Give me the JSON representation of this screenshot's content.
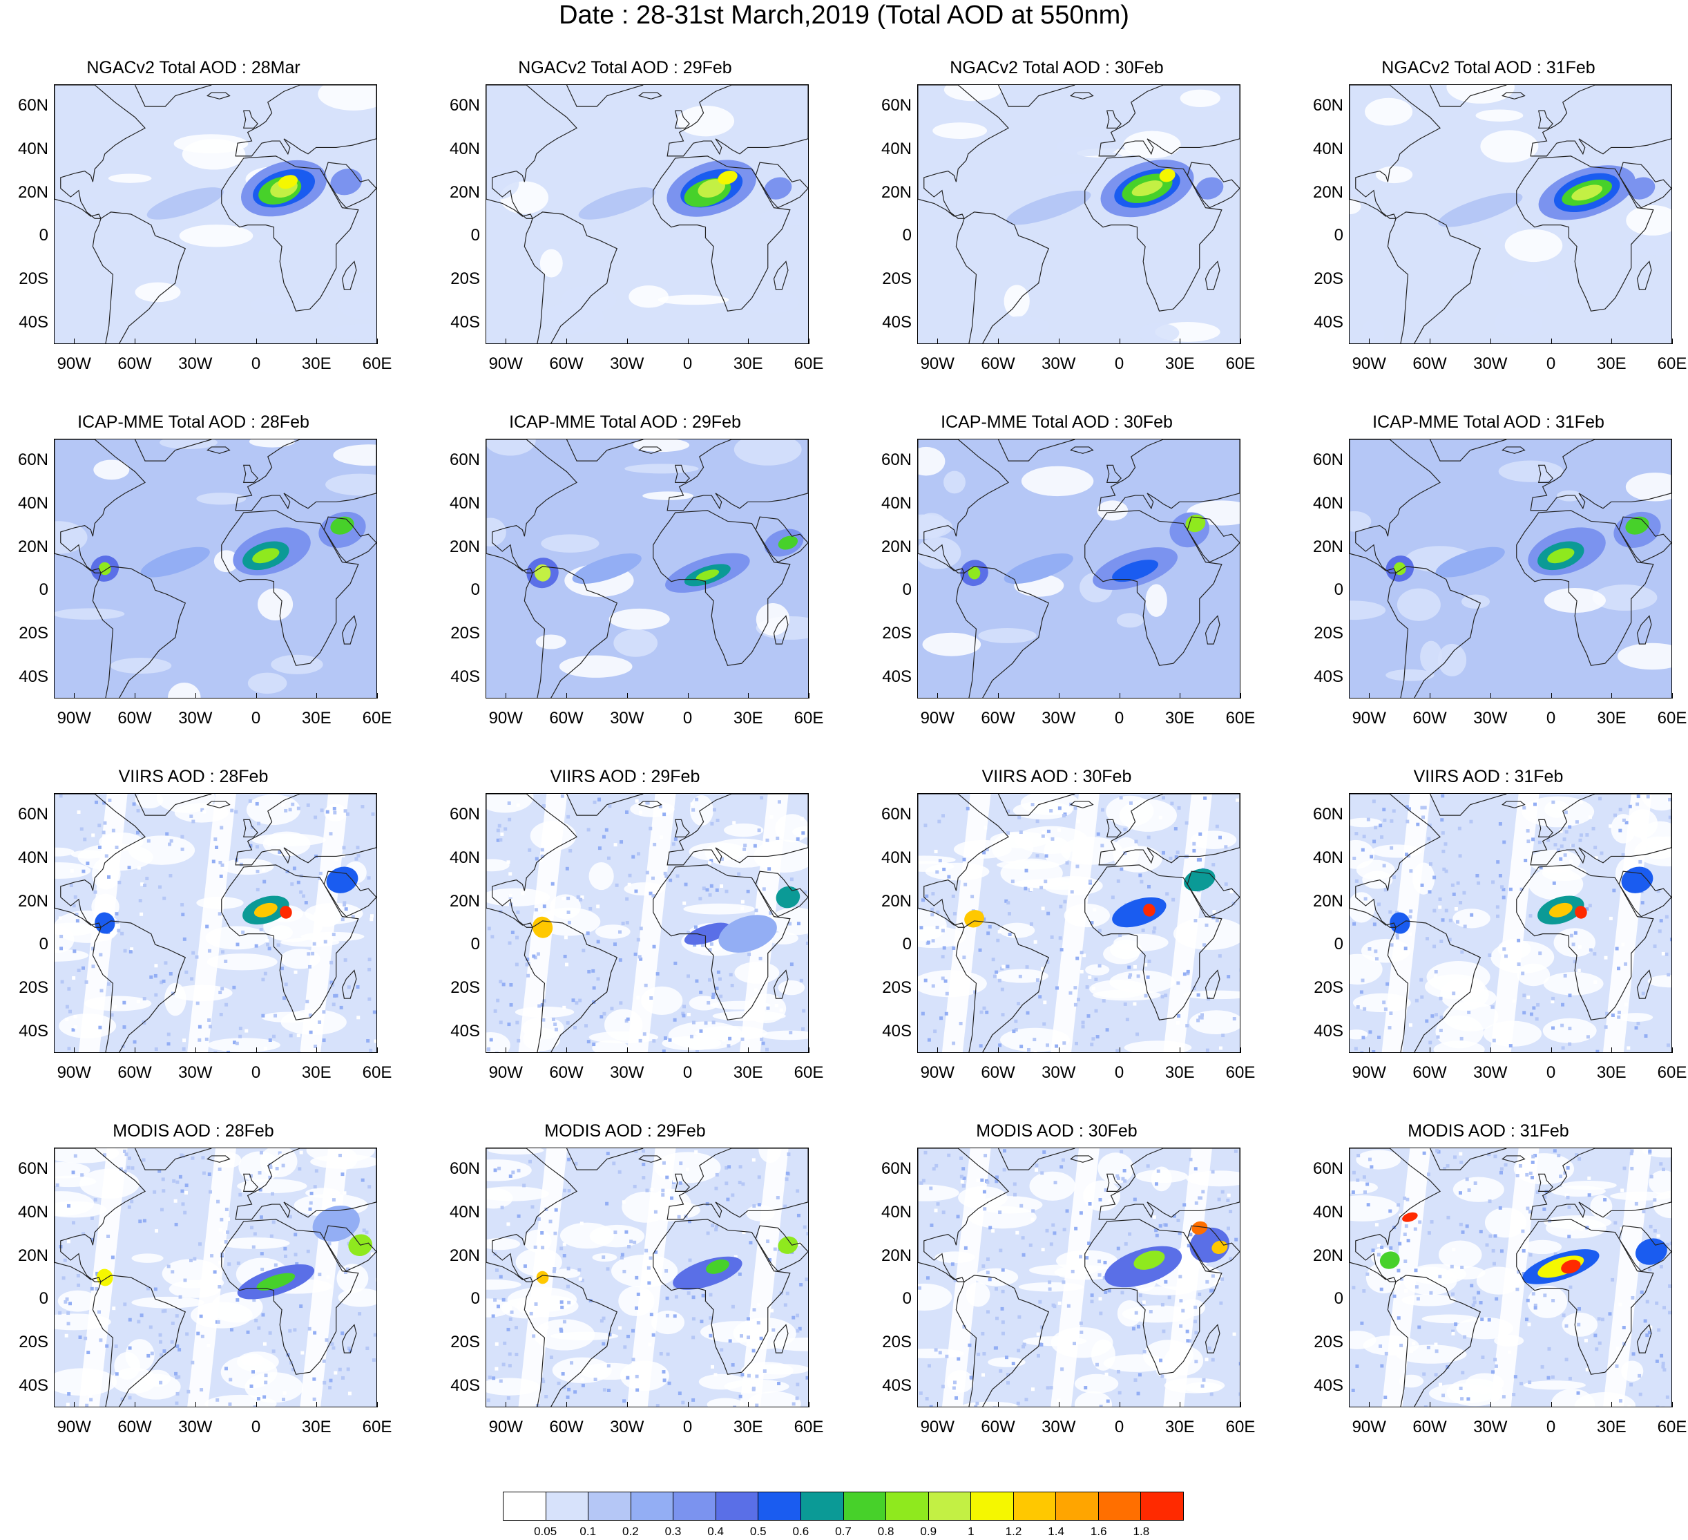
{
  "page_title": "Date : 28-31st March,2019 (Total AOD at 550nm)",
  "panels": [
    {
      "title": "NGACv2 Total AOD : 28Mar",
      "source": "NGACv2",
      "day": "28"
    },
    {
      "title": "NGACv2 Total AOD : 29Feb",
      "source": "NGACv2",
      "day": "29"
    },
    {
      "title": "NGACv2 Total AOD : 30Feb",
      "source": "NGACv2",
      "day": "30"
    },
    {
      "title": "NGACv2 Total AOD : 31Feb",
      "source": "NGACv2",
      "day": "31"
    },
    {
      "title": "ICAP-MME Total AOD : 28Feb",
      "source": "ICAP-MME",
      "day": "28"
    },
    {
      "title": "ICAP-MME Total AOD : 29Feb",
      "source": "ICAP-MME",
      "day": "29"
    },
    {
      "title": "ICAP-MME Total AOD : 30Feb",
      "source": "ICAP-MME",
      "day": "30"
    },
    {
      "title": "ICAP-MME Total AOD : 31Feb",
      "source": "ICAP-MME",
      "day": "31"
    },
    {
      "title": "VIIRS AOD : 28Feb",
      "source": "VIIRS",
      "day": "28"
    },
    {
      "title": "VIIRS AOD : 29Feb",
      "source": "VIIRS",
      "day": "29"
    },
    {
      "title": "VIIRS AOD : 30Feb",
      "source": "VIIRS",
      "day": "30"
    },
    {
      "title": "VIIRS AOD : 31Feb",
      "source": "VIIRS",
      "day": "31"
    },
    {
      "title": "MODIS AOD : 28Feb",
      "source": "MODIS",
      "day": "28"
    },
    {
      "title": "MODIS AOD : 29Feb",
      "source": "MODIS",
      "day": "29"
    },
    {
      "title": "MODIS AOD : 30Feb",
      "source": "MODIS",
      "day": "30"
    },
    {
      "title": "MODIS AOD : 31Feb",
      "source": "MODIS",
      "day": "31"
    }
  ],
  "map_extent": {
    "lon": [
      -100,
      60
    ],
    "lat": [
      -50,
      70
    ]
  },
  "lat_ticks": [
    {
      "value": 60,
      "label": "60N"
    },
    {
      "value": 40,
      "label": "40N"
    },
    {
      "value": 20,
      "label": "20N"
    },
    {
      "value": 0,
      "label": "0"
    },
    {
      "value": -20,
      "label": "20S"
    },
    {
      "value": -40,
      "label": "40S"
    }
  ],
  "lon_ticks": [
    {
      "value": -90,
      "label": "90W"
    },
    {
      "value": -60,
      "label": "60W"
    },
    {
      "value": -30,
      "label": "30W"
    },
    {
      "value": 0,
      "label": "0"
    },
    {
      "value": 30,
      "label": "30E"
    },
    {
      "value": 60,
      "label": "60E"
    }
  ],
  "colorbar": {
    "colors": [
      "#ffffff",
      "#d7e2fb",
      "#b5c7f6",
      "#93aef4",
      "#7b93ef",
      "#5a6fe7",
      "#1a5cf0",
      "#0b9a96",
      "#47d12a",
      "#8fe91e",
      "#c3f044",
      "#f5f700",
      "#ffc800",
      "#ffa500",
      "#ff6f00",
      "#ff2a00"
    ],
    "labels": [
      "0.05",
      "0.1",
      "0.2",
      "0.3",
      "0.4",
      "0.5",
      "0.6",
      "0.7",
      "0.8",
      "0.9",
      "1",
      "1.2",
      "1.4",
      "1.6",
      "1.8"
    ]
  },
  "colors": {
    "ocean_base": "#d7e2fb",
    "coastline": "#222222"
  }
}
